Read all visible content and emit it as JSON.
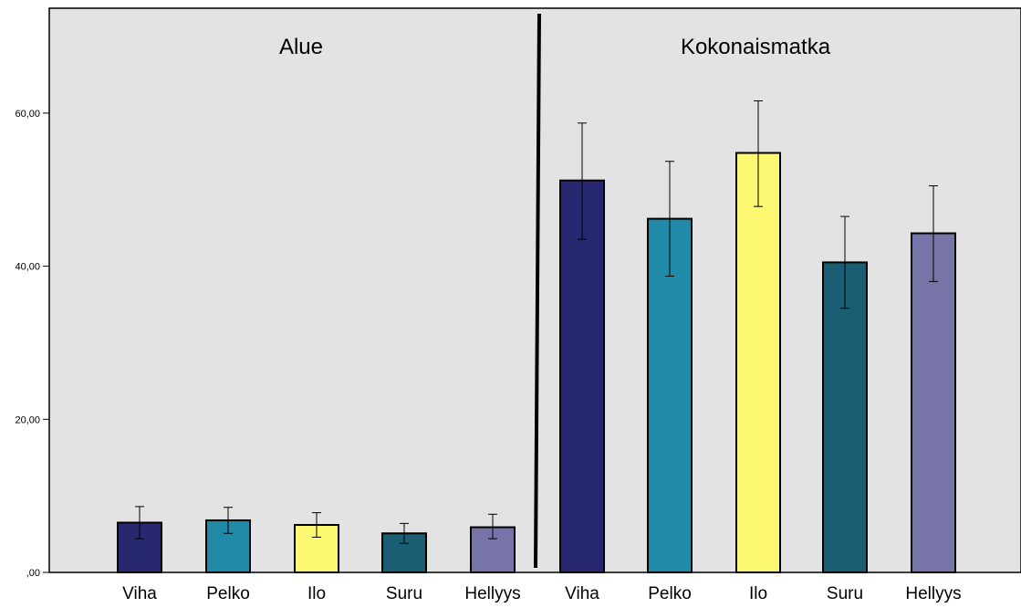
{
  "chart_data": {
    "type": "bar",
    "panels": [
      {
        "title": "Alue",
        "categories": [
          "Viha",
          "Pelko",
          "Ilo",
          "Suru",
          "Hellyys"
        ],
        "values": [
          6.5,
          6.8,
          6.2,
          5.1,
          5.9
        ],
        "error_low": [
          4.4,
          5.1,
          4.6,
          3.8,
          4.4
        ],
        "error_high": [
          8.6,
          8.5,
          7.8,
          6.4,
          7.6
        ]
      },
      {
        "title": "Kokonaismatka",
        "categories": [
          "Viha",
          "Pelko",
          "Ilo",
          "Suru",
          "Hellyys"
        ],
        "values": [
          51.2,
          46.2,
          54.8,
          40.5,
          44.3
        ],
        "error_low": [
          43.5,
          38.7,
          47.8,
          34.5,
          38.0
        ],
        "error_high": [
          58.7,
          53.7,
          61.6,
          46.5,
          50.5
        ]
      }
    ],
    "colors": [
      "#27286f",
      "#228aa9",
      "#fdf871",
      "#1a5e73",
      "#7775a7"
    ],
    "ylim": [
      0,
      73
    ],
    "yticks": [
      {
        "value": 0,
        "label": ",00"
      },
      {
        "value": 20,
        "label": "20,00"
      },
      {
        "value": 40,
        "label": "40,00"
      },
      {
        "value": 60,
        "label": "60,00"
      }
    ],
    "plot_background": "#e3e3e3",
    "grid": false,
    "xlabel": "",
    "ylabel": ""
  }
}
